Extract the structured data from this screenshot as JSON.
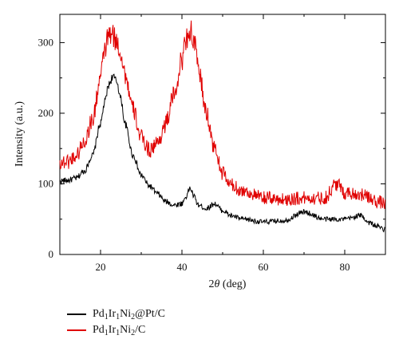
{
  "chart_data": {
    "type": "line",
    "xlabel": "2θ (deg)",
    "ylabel": "Intensity (a.u.)",
    "xlim": [
      10,
      90
    ],
    "ylim": [
      0,
      340
    ],
    "x_ticks": [
      "20",
      "40",
      "60",
      "80"
    ],
    "y_ticks": [
      "0",
      "100",
      "200",
      "300"
    ],
    "legend_position": "bottom-left, below plot",
    "series": [
      {
        "name": "Pd1Ir1Ni2@Pt/C",
        "color": "#000000",
        "x": [
          10,
          12,
          14,
          16,
          18,
          20,
          21,
          22,
          23,
          24,
          25,
          26,
          28,
          30,
          32,
          34,
          36,
          38,
          40,
          41,
          42,
          43,
          44,
          46,
          48,
          50,
          52,
          55,
          60,
          65,
          70,
          75,
          80,
          84,
          86,
          88,
          90
        ],
        "y": [
          104,
          105,
          108,
          118,
          140,
          185,
          215,
          240,
          252,
          245,
          220,
          185,
          140,
          112,
          97,
          86,
          75,
          70,
          72,
          82,
          94,
          82,
          70,
          65,
          72,
          62,
          55,
          50,
          46,
          48,
          60,
          50,
          50,
          55,
          45,
          40,
          35
        ]
      },
      {
        "name": "Pd1Ir1Ni2/C",
        "color": "#e00000",
        "x": [
          10,
          12,
          14,
          16,
          18,
          20,
          21,
          22,
          23,
          24,
          25,
          26,
          28,
          30,
          32,
          34,
          36,
          38,
          40,
          41,
          42,
          43,
          44,
          46,
          48,
          50,
          52,
          55,
          60,
          65,
          70,
          75,
          78,
          80,
          84,
          86,
          88,
          90
        ],
        "y": [
          130,
          132,
          140,
          160,
          190,
          250,
          290,
          310,
          310,
          300,
          285,
          255,
          205,
          165,
          148,
          158,
          185,
          225,
          275,
          305,
          318,
          300,
          265,
          200,
          150,
          115,
          98,
          90,
          80,
          78,
          80,
          80,
          100,
          88,
          85,
          80,
          75,
          72
        ]
      }
    ]
  },
  "legend": [
    {
      "base": "Pd",
      "s1": "1",
      "m1": "Ir",
      "s2": "1",
      "m2": "Ni",
      "s3": "2",
      "tail": "@Pt/C",
      "color": "#000000"
    },
    {
      "base": "Pd",
      "s1": "1",
      "m1": "Ir",
      "s2": "1",
      "m2": "Ni",
      "s3": "2",
      "tail": "/C",
      "color": "#e00000"
    }
  ]
}
